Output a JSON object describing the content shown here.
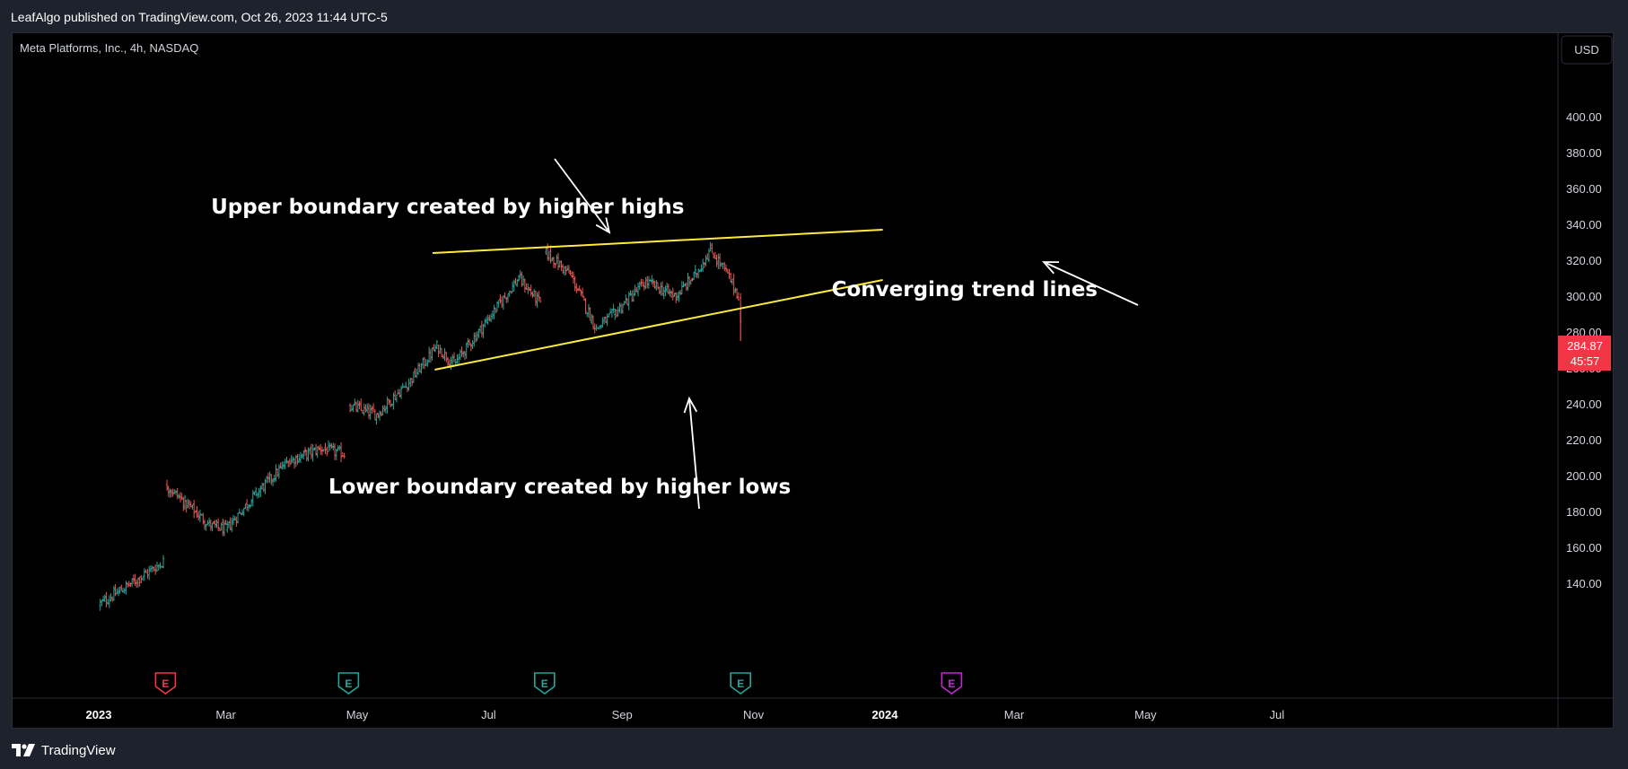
{
  "header": {
    "published_text": "LeafAlgo published on TradingView.com, Oct 26, 2023 11:44 UTC-5"
  },
  "symbol_title": "Meta Platforms, Inc., 4h, NASDAQ",
  "currency_button": "USD",
  "price_badge": {
    "price": "284.87",
    "timer": "45:57",
    "color": "#f23645"
  },
  "footer": {
    "brand": "TradingView"
  },
  "colors": {
    "up": "#26a69a",
    "down": "#ef5350",
    "trendline": "#ffeb3b",
    "annotation": "#ffffff",
    "background": "#000000"
  },
  "chart_data": {
    "type": "candlestick",
    "title": "Meta Platforms, Inc., 4h, NASDAQ",
    "ylim": [
      130,
      410
    ],
    "y_ticks": [
      "140.00",
      "160.00",
      "180.00",
      "200.00",
      "220.00",
      "240.00",
      "260.00",
      "280.00",
      "300.00",
      "320.00",
      "340.00",
      "360.00",
      "380.00",
      "400.00"
    ],
    "x_ticks": [
      {
        "label": "2023",
        "date": "2023-01-01",
        "bold": true
      },
      {
        "label": "Mar",
        "date": "2023-03-01",
        "bold": false
      },
      {
        "label": "May",
        "date": "2023-05-01",
        "bold": false
      },
      {
        "label": "Jul",
        "date": "2023-07-01",
        "bold": false
      },
      {
        "label": "Sep",
        "date": "2023-09-01",
        "bold": false
      },
      {
        "label": "Nov",
        "date": "2023-11-01",
        "bold": false
      },
      {
        "label": "2024",
        "date": "2024-01-01",
        "bold": true
      },
      {
        "label": "Mar",
        "date": "2024-03-01",
        "bold": false
      },
      {
        "label": "May",
        "date": "2024-05-01",
        "bold": false
      },
      {
        "label": "Jul",
        "date": "2024-07-01",
        "bold": false
      }
    ],
    "price_path": [
      {
        "date": "2023-01-01",
        "value": 128
      },
      {
        "date": "2023-01-20",
        "value": 143
      },
      {
        "date": "2023-01-31",
        "value": 152
      },
      {
        "date": "2023-02-01",
        "value": 195
      },
      {
        "date": "2023-02-10",
        "value": 185
      },
      {
        "date": "2023-02-22",
        "value": 172
      },
      {
        "date": "2023-03-01",
        "value": 170
      },
      {
        "date": "2023-03-15",
        "value": 190
      },
      {
        "date": "2023-03-30",
        "value": 208
      },
      {
        "date": "2023-04-14",
        "value": 215
      },
      {
        "date": "2023-04-25",
        "value": 212
      },
      {
        "date": "2023-04-27",
        "value": 239
      },
      {
        "date": "2023-05-10",
        "value": 234
      },
      {
        "date": "2023-05-25",
        "value": 252
      },
      {
        "date": "2023-06-07",
        "value": 272
      },
      {
        "date": "2023-06-15",
        "value": 262
      },
      {
        "date": "2023-06-30",
        "value": 286
      },
      {
        "date": "2023-07-15",
        "value": 310
      },
      {
        "date": "2023-07-25",
        "value": 296
      },
      {
        "date": "2023-07-27",
        "value": 325
      },
      {
        "date": "2023-08-08",
        "value": 312
      },
      {
        "date": "2023-08-20",
        "value": 282
      },
      {
        "date": "2023-08-28",
        "value": 290
      },
      {
        "date": "2023-09-12",
        "value": 308
      },
      {
        "date": "2023-09-26",
        "value": 300
      },
      {
        "date": "2023-10-05",
        "value": 312
      },
      {
        "date": "2023-10-12",
        "value": 326
      },
      {
        "date": "2023-10-20",
        "value": 312
      },
      {
        "date": "2023-10-25",
        "value": 300
      },
      {
        "date": "2023-10-26",
        "value": 285
      }
    ],
    "trendlines": [
      {
        "name": "upper",
        "start": {
          "date": "2023-06-05",
          "value": 324
        },
        "end": {
          "date": "2023-12-31",
          "value": 337
        }
      },
      {
        "name": "lower",
        "start": {
          "date": "2023-06-06",
          "value": 259
        },
        "end": {
          "date": "2023-12-31",
          "value": 309
        }
      }
    ],
    "annotations": [
      {
        "text": "Upper boundary created by higher highs",
        "x_date": "2023-06-12",
        "y": 346
      },
      {
        "text": "Lower boundary created by higher lows",
        "x_date": "2023-08-03",
        "y": 190
      },
      {
        "text": "Converging trend lines",
        "x_date": "2024-02-07",
        "y": 300
      }
    ],
    "earnings_markers": [
      {
        "label": "E",
        "date": "2023-02-01",
        "color": "#f23645"
      },
      {
        "label": "E",
        "date": "2023-04-27",
        "color": "#26a69a"
      },
      {
        "label": "E",
        "date": "2023-07-27",
        "color": "#26a69a"
      },
      {
        "label": "E",
        "date": "2023-10-26",
        "color": "#26a69a"
      },
      {
        "label": "E",
        "date": "2024-02-01",
        "color": "#c02bd1"
      }
    ]
  }
}
